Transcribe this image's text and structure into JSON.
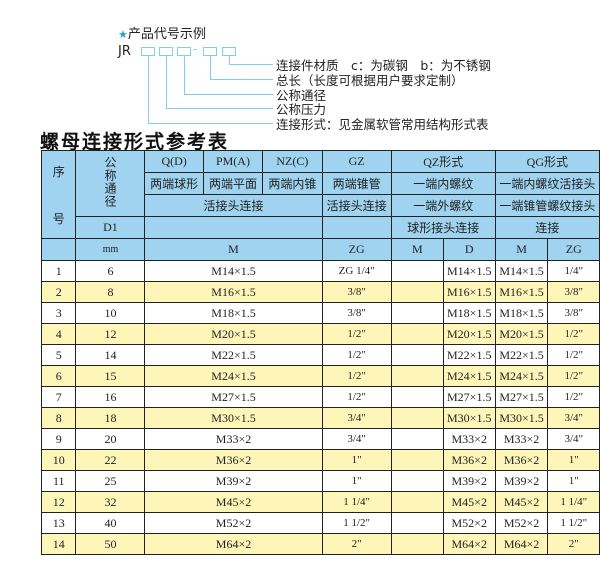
{
  "intro": {
    "star_icon": "star",
    "heading": "产品代号示例",
    "code_prefix": "JR",
    "dash": "-",
    "labels": [
      "连接件材质　c：为碳钢　b：为不锈钢",
      "总长（长度可根据用户要求定制）",
      "公称通径",
      "公称压力",
      "连接形式：见金属软管常用结构形式表"
    ]
  },
  "title": "螺母连接形式参考表",
  "header": {
    "seq": "序",
    "seq2": "号",
    "nominal": "公称通径",
    "q": "Q(D)",
    "pm": "PM(A)",
    "nz": "NZ(C)",
    "gz": "GZ",
    "qz": "QZ形式",
    "qg": "QG形式",
    "q2": "两端球形",
    "pm2": "两端平面",
    "nz2": "两端内锥",
    "gz2": "两端锥管",
    "qz2": "一端内螺纹",
    "qg2": "一端内螺纹活接头",
    "union": "活接头连接",
    "gz3": "活接头连接",
    "qz3": "一端外螺纹",
    "qg3": "一端锥管螺纹接头",
    "d1": "D1",
    "qz4": "球形接头连接",
    "qg4": "连接",
    "mm": "mm",
    "m": "M",
    "zg": "ZG",
    "qzm": "M",
    "qzd": "D",
    "qgm": "M",
    "qgzg": "ZG"
  },
  "rows": [
    [
      "1",
      "6",
      "M14×1.5",
      "ZG 1/4\"",
      "",
      "M14×1.5",
      "M14×1.5",
      "1/4\""
    ],
    [
      "2",
      "8",
      "M16×1.5",
      "3/8\"",
      "",
      "M16×1.5",
      "M16×1.5",
      "3/8\""
    ],
    [
      "3",
      "10",
      "M18×1.5",
      "3/8\"",
      "",
      "M18×1.5",
      "M18×1.5",
      "3/8\""
    ],
    [
      "4",
      "12",
      "M20×1.5",
      "1/2\"",
      "",
      "M20×1.5",
      "M20×1.5",
      "1/2\""
    ],
    [
      "5",
      "14",
      "M22×1.5",
      "1/2\"",
      "",
      "M22×1.5",
      "M22×1.5",
      "1/2\""
    ],
    [
      "6",
      "15",
      "M24×1.5",
      "1/2\"",
      "",
      "M24×1.5",
      "M24×1.5",
      "1/2\""
    ],
    [
      "7",
      "16",
      "M27×1.5",
      "1/2\"",
      "",
      "M27×1.5",
      "M27×1.5",
      "1/2\""
    ],
    [
      "8",
      "18",
      "M30×1.5",
      "3/4\"",
      "",
      "M30×1.5",
      "M30×1.5",
      "3/4\""
    ],
    [
      "9",
      "20",
      "M33×2",
      "3/4\"",
      "",
      "M33×2",
      "M33×2",
      "3/4\""
    ],
    [
      "10",
      "22",
      "M36×2",
      "1\"",
      "",
      "M36×2",
      "M36×2",
      "1\""
    ],
    [
      "11",
      "25",
      "M39×2",
      "1\"",
      "",
      "M39×2",
      "M39×2",
      "1\""
    ],
    [
      "12",
      "32",
      "M45×2",
      "1 1/4\"",
      "",
      "M45×2",
      "M45×2",
      "1 1/4\""
    ],
    [
      "13",
      "40",
      "M52×2",
      "1 1/2\"",
      "",
      "M52×2",
      "M52×2",
      "1 1/2\""
    ],
    [
      "14",
      "50",
      "M64×2",
      "2\"",
      "",
      "M64×2",
      "M64×2",
      "2\""
    ]
  ]
}
